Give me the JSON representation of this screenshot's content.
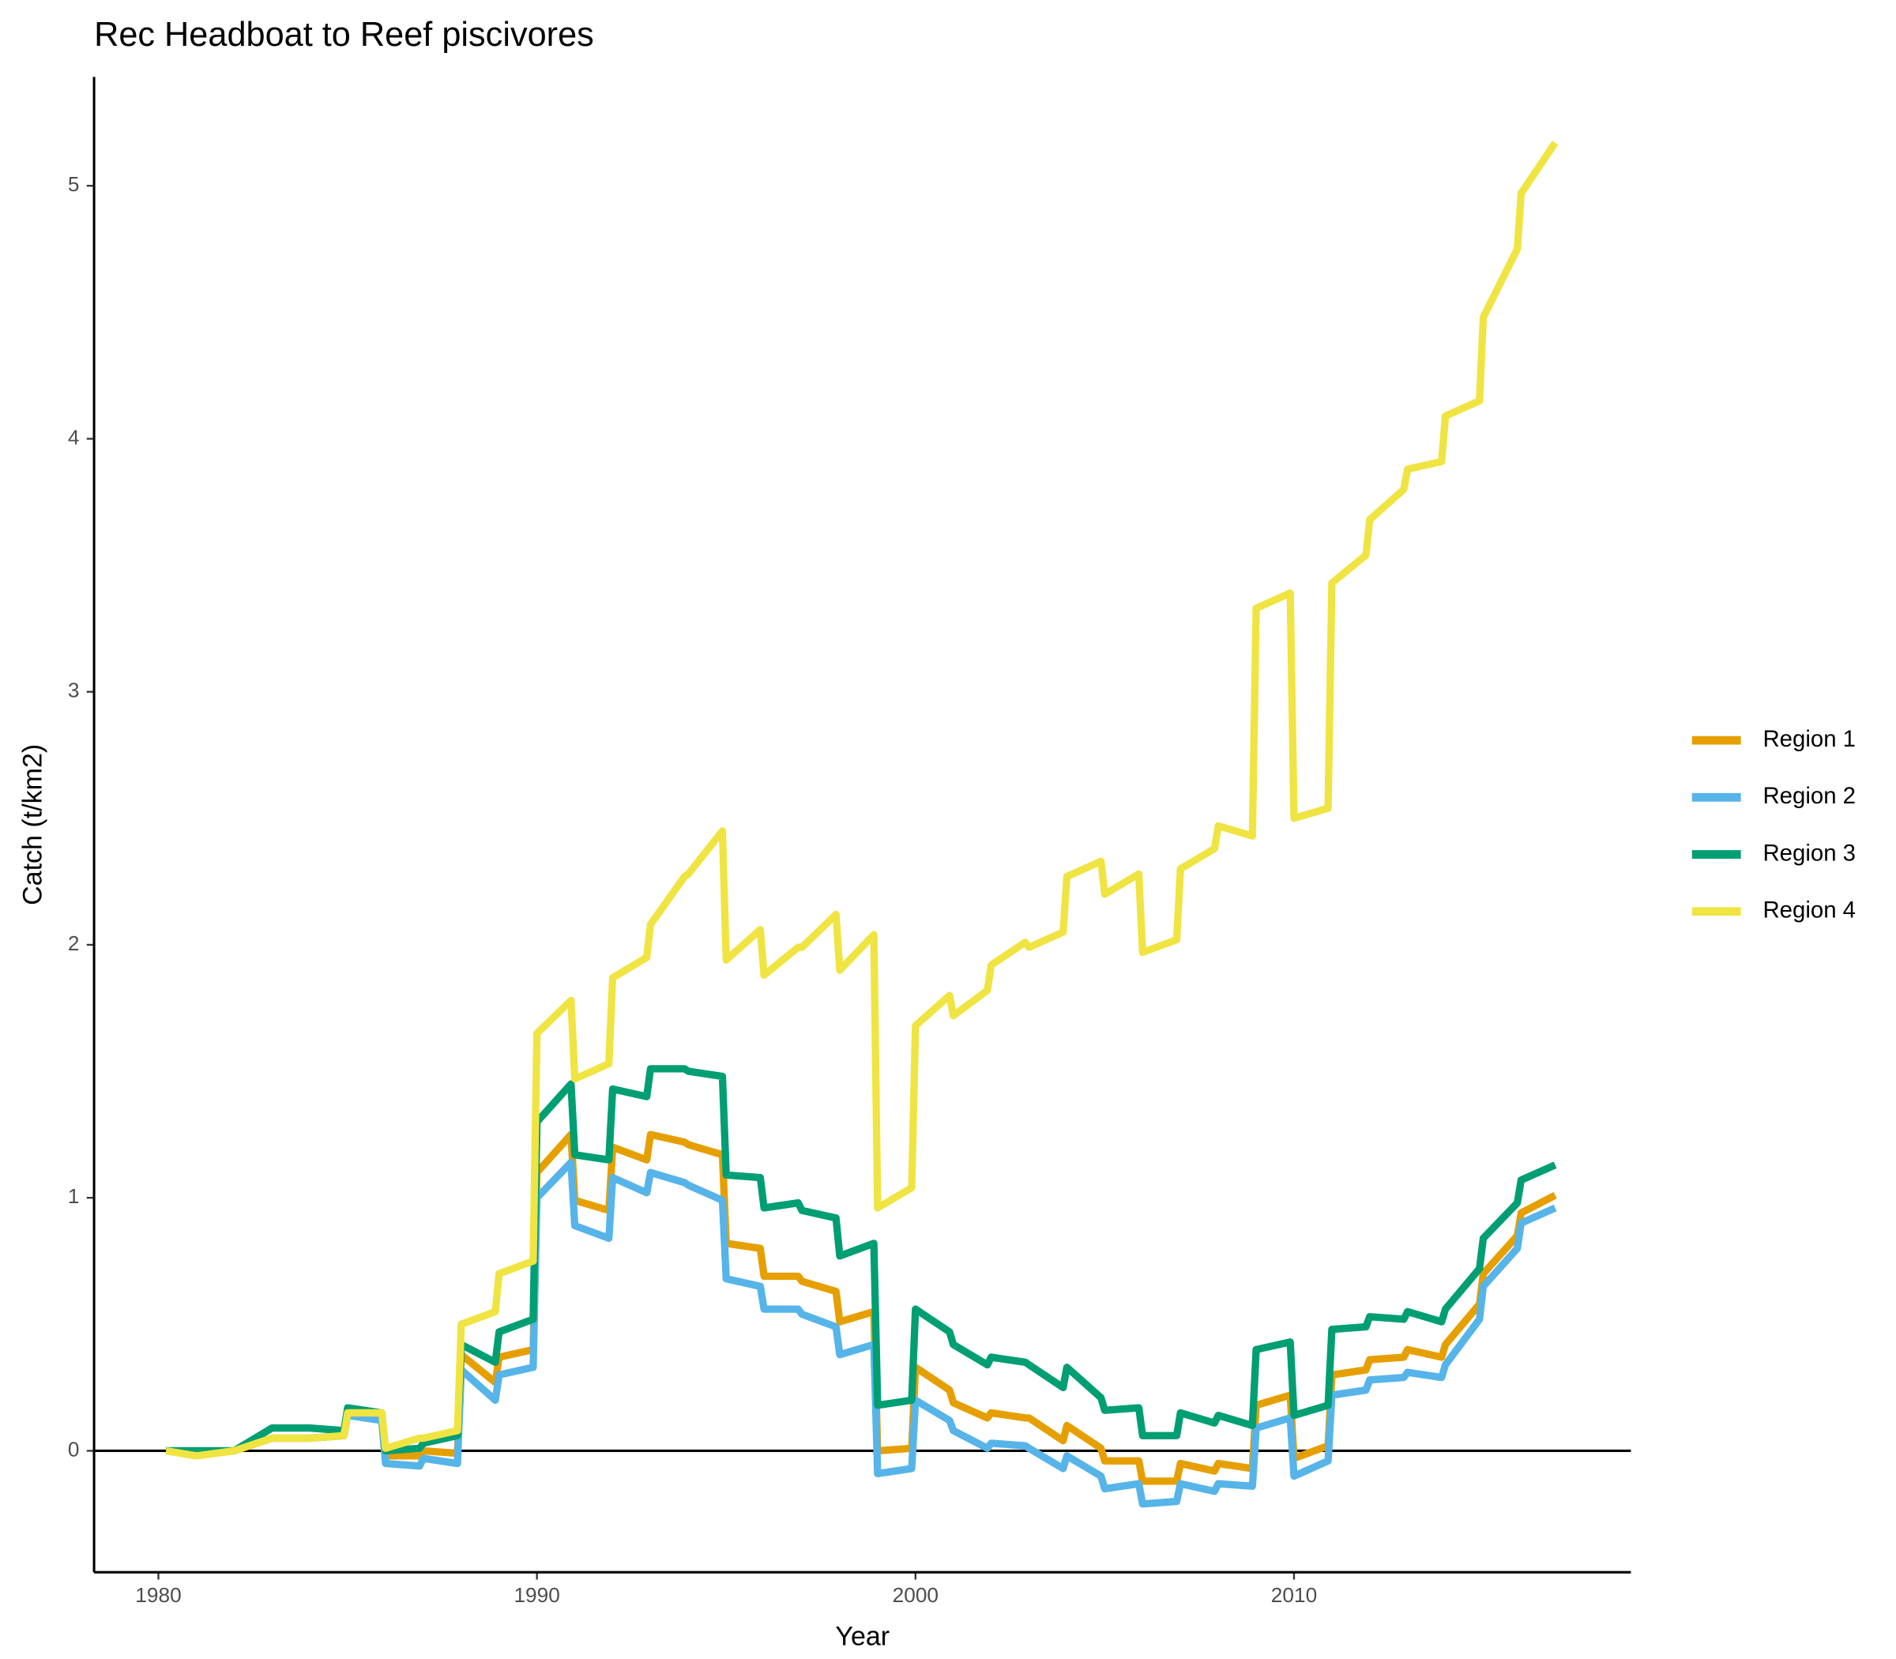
{
  "chart_data": {
    "type": "line",
    "title": "Rec Headboat to Reef piscivores",
    "xlabel": "Year",
    "ylabel": "Catch (t/km2)",
    "x": [
      1980.2,
      1981,
      1982,
      1983,
      1984,
      1984.9,
      1985,
      1985.9,
      1986,
      1986.9,
      1987,
      1987.9,
      1988,
      1988.9,
      1989,
      1989.9,
      1990,
      1990.9,
      1991,
      1991.9,
      1992,
      1992.9,
      1993,
      1993.9,
      1994,
      1994.9,
      1995,
      1995.9,
      1996,
      1996.9,
      1997,
      1997.9,
      1998,
      1998.9,
      1999,
      1999.9,
      2000,
      2000.9,
      2001,
      2001.9,
      2002,
      2002.9,
      2003,
      2003.9,
      2004,
      2004.9,
      2005,
      2005.9,
      2006,
      2006.9,
      2007,
      2007.9,
      2008,
      2008.9,
      2009,
      2009.9,
      2010,
      2010.9,
      2011,
      2011.9,
      2012,
      2012.9,
      2013,
      2013.9,
      2014,
      2014.9,
      2015,
      2015.9,
      2016,
      2016.9
    ],
    "series": [
      {
        "name": "Region 1",
        "color": "#e69f00",
        "values": [
          0,
          0,
          0,
          0.05,
          0.05,
          0.06,
          0.15,
          0.14,
          -0.02,
          -0.02,
          0.0,
          -0.01,
          0.38,
          0.27,
          0.37,
          0.4,
          1.1,
          1.25,
          0.99,
          0.95,
          1.2,
          1.15,
          1.25,
          1.22,
          1.21,
          1.17,
          0.82,
          0.8,
          0.69,
          0.69,
          0.67,
          0.63,
          0.51,
          0.55,
          0.0,
          0.01,
          0.33,
          0.24,
          0.19,
          0.13,
          0.15,
          0.13,
          0.13,
          0.04,
          0.1,
          0.01,
          -0.04,
          -0.04,
          -0.12,
          -0.12,
          -0.05,
          -0.08,
          -0.05,
          -0.07,
          0.18,
          0.22,
          -0.03,
          0.02,
          0.3,
          0.32,
          0.36,
          0.37,
          0.4,
          0.37,
          0.42,
          0.58,
          0.7,
          0.85,
          0.94,
          1.01
        ]
      },
      {
        "name": "Region 2",
        "color": "#56b4e9",
        "values": [
          0,
          0,
          0,
          0.05,
          0.05,
          0.06,
          0.14,
          0.12,
          -0.05,
          -0.06,
          -0.03,
          -0.05,
          0.32,
          0.2,
          0.3,
          0.33,
          1.0,
          1.14,
          0.89,
          0.84,
          1.08,
          1.02,
          1.1,
          1.06,
          1.05,
          0.99,
          0.68,
          0.65,
          0.56,
          0.56,
          0.54,
          0.49,
          0.38,
          0.42,
          -0.09,
          -0.07,
          0.2,
          0.12,
          0.08,
          0.01,
          0.03,
          0.02,
          0.01,
          -0.07,
          -0.02,
          -0.1,
          -0.15,
          -0.13,
          -0.21,
          -0.2,
          -0.13,
          -0.16,
          -0.13,
          -0.14,
          0.09,
          0.13,
          -0.1,
          -0.04,
          0.22,
          0.24,
          0.28,
          0.29,
          0.31,
          0.29,
          0.34,
          0.52,
          0.65,
          0.8,
          0.9,
          0.96
        ]
      },
      {
        "name": "Region 3",
        "color": "#009e73",
        "values": [
          0,
          0,
          0,
          0.09,
          0.09,
          0.08,
          0.17,
          0.15,
          0.0,
          0.01,
          0.03,
          0.06,
          0.42,
          0.35,
          0.47,
          0.52,
          1.3,
          1.45,
          1.17,
          1.15,
          1.43,
          1.4,
          1.51,
          1.51,
          1.5,
          1.48,
          1.09,
          1.08,
          0.96,
          0.98,
          0.95,
          0.92,
          0.77,
          0.82,
          0.18,
          0.2,
          0.56,
          0.47,
          0.42,
          0.34,
          0.37,
          0.35,
          0.34,
          0.25,
          0.33,
          0.21,
          0.16,
          0.17,
          0.06,
          0.06,
          0.15,
          0.11,
          0.14,
          0.1,
          0.4,
          0.43,
          0.14,
          0.18,
          0.48,
          0.49,
          0.53,
          0.52,
          0.55,
          0.51,
          0.56,
          0.72,
          0.84,
          0.98,
          1.07,
          1.13
        ]
      },
      {
        "name": "Region 4",
        "color": "#f0e442",
        "values": [
          0,
          -0.02,
          0,
          0.05,
          0.05,
          0.06,
          0.15,
          0.15,
          0.01,
          0.05,
          0.05,
          0.08,
          0.5,
          0.55,
          0.7,
          0.75,
          1.65,
          1.78,
          1.47,
          1.53,
          1.87,
          1.95,
          2.08,
          2.27,
          2.28,
          2.45,
          1.94,
          2.06,
          1.88,
          1.99,
          1.99,
          2.12,
          1.9,
          2.04,
          0.96,
          1.04,
          1.68,
          1.8,
          1.72,
          1.82,
          1.92,
          2.01,
          1.99,
          2.05,
          2.27,
          2.33,
          2.2,
          2.28,
          1.97,
          2.02,
          2.3,
          2.38,
          2.47,
          2.43,
          3.33,
          3.39,
          2.5,
          2.54,
          3.43,
          3.54,
          3.68,
          3.8,
          3.88,
          3.91,
          4.09,
          4.15,
          4.48,
          4.75,
          4.97,
          5.17
        ]
      }
    ],
    "xlim": [
      1978.3,
      2018.9
    ],
    "xticks": [
      1980,
      1990,
      2000,
      2010
    ],
    "ylim": [
      -0.48,
      5.43
    ],
    "yticks": [
      0,
      1,
      2,
      3,
      4,
      5
    ],
    "hline": 0,
    "grid": false,
    "legend": "right"
  }
}
